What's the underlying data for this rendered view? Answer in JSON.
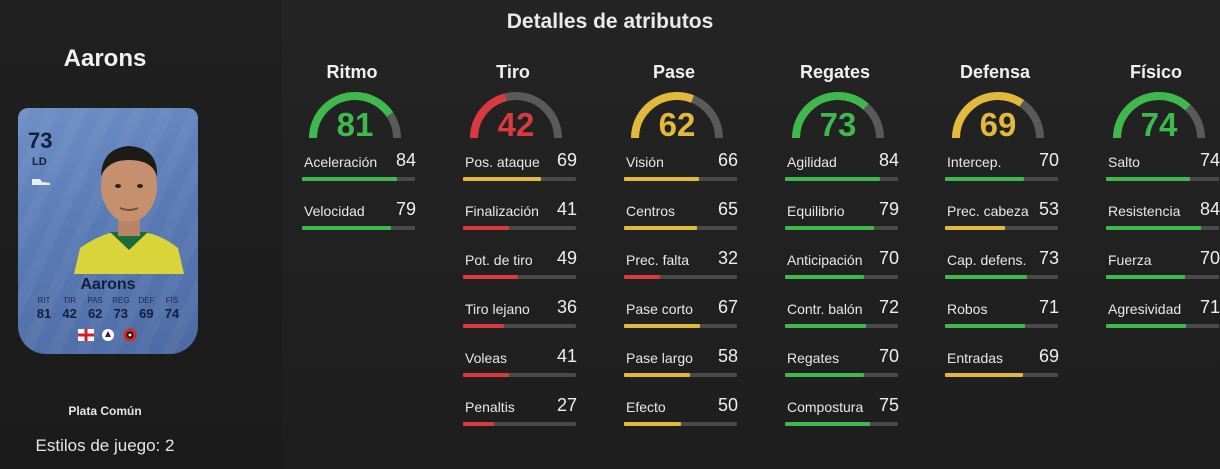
{
  "player": {
    "name": "Aarons",
    "rating": "73",
    "position": "LD",
    "card_name": "Aarons",
    "card_stats": [
      {
        "label": "RIT",
        "value": "81"
      },
      {
        "label": "TIR",
        "value": "42"
      },
      {
        "label": "PAS",
        "value": "62"
      },
      {
        "label": "REG",
        "value": "73"
      },
      {
        "label": "DEF",
        "value": "69"
      },
      {
        "label": "FÍS",
        "value": "74"
      }
    ],
    "card_type": "Plata Común",
    "playstyles": "Estilos de juego: 2"
  },
  "section_title": "Detalles de atributos",
  "colors": {
    "green": "#3fb84e",
    "yellow": "#e2b93b",
    "red": "#d83a3f",
    "gauge_track": "#5a5a5a"
  },
  "attributes": [
    {
      "name": "Ritmo",
      "value": 81,
      "stats": [
        {
          "label": "Aceleración",
          "value": 84
        },
        {
          "label": "Velocidad",
          "value": 79
        }
      ]
    },
    {
      "name": "Tiro",
      "value": 42,
      "stats": [
        {
          "label": "Pos. ataque",
          "value": 69
        },
        {
          "label": "Finalización",
          "value": 41
        },
        {
          "label": "Pot. de tiro",
          "value": 49
        },
        {
          "label": "Tiro lejano",
          "value": 36
        },
        {
          "label": "Voleas",
          "value": 41
        },
        {
          "label": "Penaltis",
          "value": 27
        }
      ]
    },
    {
      "name": "Pase",
      "value": 62,
      "stats": [
        {
          "label": "Visión",
          "value": 66
        },
        {
          "label": "Centros",
          "value": 65
        },
        {
          "label": "Prec. falta",
          "value": 32
        },
        {
          "label": "Pase corto",
          "value": 67
        },
        {
          "label": "Pase largo",
          "value": 58
        },
        {
          "label": "Efecto",
          "value": 50
        }
      ]
    },
    {
      "name": "Regates",
      "value": 73,
      "stats": [
        {
          "label": "Agilidad",
          "value": 84
        },
        {
          "label": "Equilibrio",
          "value": 79
        },
        {
          "label": "Anticipación",
          "value": 70
        },
        {
          "label": "Contr. balón",
          "value": 72
        },
        {
          "label": "Regates",
          "value": 70
        },
        {
          "label": "Compostura",
          "value": 75
        }
      ]
    },
    {
      "name": "Defensa",
      "value": 69,
      "stats": [
        {
          "label": "Intercep.",
          "value": 70
        },
        {
          "label": "Prec. cabeza",
          "value": 53
        },
        {
          "label": "Cap. defens.",
          "value": 73
        },
        {
          "label": "Robos",
          "value": 71
        },
        {
          "label": "Entradas",
          "value": 69
        }
      ]
    },
    {
      "name": "Físico",
      "value": 74,
      "stats": [
        {
          "label": "Salto",
          "value": 74
        },
        {
          "label": "Resistencia",
          "value": 84
        },
        {
          "label": "Fuerza",
          "value": 70
        },
        {
          "label": "Agresividad",
          "value": 71
        }
      ]
    }
  ]
}
